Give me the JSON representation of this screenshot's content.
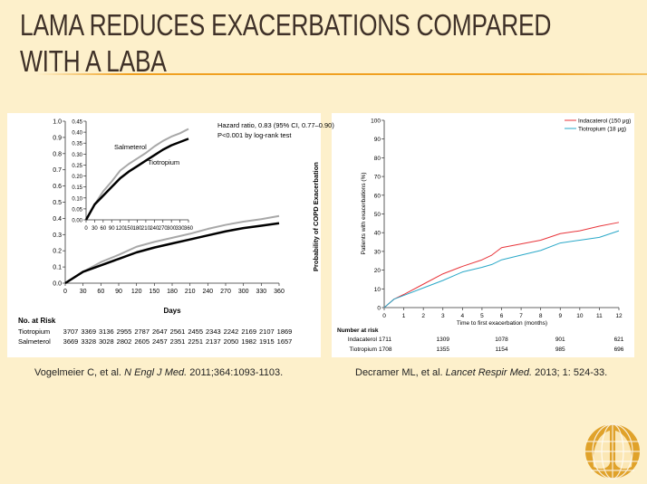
{
  "slide": {
    "title_line1": "LAMA REDUCES EXACERBATIONS COMPARED",
    "title_line2": "WITH A LABA"
  },
  "citations": [
    {
      "pre": "Vogelmeier C, et al. ",
      "journal": "N Engl J Med.",
      "post": " 2011;364:1093-1103."
    },
    {
      "pre": "Decramer ML, et al. ",
      "journal": "Lancet Respir Med.",
      "post": " 2013; 1: 524-33."
    }
  ],
  "colors": {
    "background": "#fdf0cb",
    "accent": "#f0a020",
    "title": "#3f3128",
    "tiotropium_left": "#000000",
    "salmeterol": "#a8a8a8",
    "indacaterol": "#e8343a",
    "tiotropium_right": "#2aa8c8"
  },
  "logo": {
    "icon": "globe-lungs-logo-icon"
  },
  "chart_data": [
    {
      "type": "line",
      "xlabel": "Days",
      "ylabel": "Probability of COPD Exacerbation",
      "xlim": [
        0,
        360
      ],
      "ylim": [
        0,
        1.0
      ],
      "xticks": [
        0,
        30,
        60,
        90,
        120,
        150,
        180,
        210,
        240,
        270,
        300,
        330,
        360
      ],
      "yticks": [
        "0.0",
        "0.1",
        "0.2",
        "0.3",
        "0.4",
        "0.5",
        "0.6",
        "0.7",
        "0.8",
        "0.9",
        "1.0"
      ],
      "annotation": [
        "Hazard ratio, 0.83 (95% CI, 0.77–0.90)",
        "P<0.001 by log-rank test"
      ],
      "inset": {
        "xlim": [
          0,
          360
        ],
        "ylim": [
          0,
          0.45
        ],
        "xticks": [
          0,
          30,
          60,
          90,
          120,
          150,
          180,
          210,
          240,
          270,
          300,
          330,
          360
        ],
        "yticks": [
          "0.00",
          "0.05",
          "0.10",
          "0.15",
          "0.20",
          "0.25",
          "0.30",
          "0.35",
          "0.40",
          "0.45"
        ],
        "labels": [
          "Salmeterol",
          "Tiotropium"
        ]
      },
      "x": [
        0,
        30,
        60,
        90,
        120,
        150,
        180,
        210,
        240,
        270,
        300,
        330,
        360
      ],
      "series": [
        {
          "name": "Tiotropium",
          "color": "#000000",
          "values": [
            0,
            0.07,
            0.11,
            0.15,
            0.19,
            0.22,
            0.245,
            0.27,
            0.295,
            0.32,
            0.34,
            0.355,
            0.37
          ]
        },
        {
          "name": "Salmeterol",
          "color": "#a8a8a8",
          "values": [
            0,
            0.07,
            0.13,
            0.175,
            0.225,
            0.255,
            0.28,
            0.305,
            0.335,
            0.36,
            0.38,
            0.395,
            0.415
          ]
        }
      ],
      "risk_table": {
        "title": "No. at Risk",
        "rows": [
          {
            "label": "Tiotropium",
            "values": [
              3707,
              3369,
              3136,
              2955,
              2787,
              2647,
              2561,
              2455,
              2343,
              2242,
              2169,
              2107,
              1869
            ]
          },
          {
            "label": "Salmeterol",
            "values": [
              3669,
              3328,
              3028,
              2802,
              2605,
              2457,
              2351,
              2251,
              2137,
              2050,
              1982,
              1915,
              1657
            ]
          }
        ]
      }
    },
    {
      "type": "line",
      "xlabel": "Time to first exacerbation (months)",
      "ylabel": "Patients with exacerbations (%)",
      "xlim": [
        0,
        12
      ],
      "ylim": [
        0,
        100
      ],
      "xticks": [
        0,
        1,
        2,
        3,
        4,
        5,
        6,
        7,
        8,
        9,
        10,
        11,
        12
      ],
      "yticks": [
        0,
        10,
        20,
        30,
        40,
        50,
        60,
        70,
        80,
        90,
        100
      ],
      "legend": "top-right",
      "x": [
        0,
        0.5,
        1,
        2,
        3,
        4,
        5,
        5.5,
        6,
        7,
        8,
        9,
        10,
        11,
        12
      ],
      "series": [
        {
          "name": "Indacaterol (150 μg)",
          "color": "#e8343a",
          "values": [
            0,
            4.5,
            7,
            12.5,
            18,
            22,
            25.5,
            28,
            32,
            34,
            36,
            39.5,
            41,
            43.5,
            45.5
          ]
        },
        {
          "name": "Tiotropium (18 μg)",
          "color": "#2aa8c8",
          "values": [
            0,
            4.5,
            6.5,
            10.5,
            14.5,
            19,
            21.5,
            23,
            25.5,
            28,
            30.5,
            34.5,
            36,
            37.5,
            41
          ]
        }
      ],
      "risk_table": {
        "title": "Number at risk",
        "x": [
          0,
          3,
          6,
          9,
          12
        ],
        "rows": [
          {
            "label": "Indacaterol",
            "values": [
              1711,
              1309,
              1078,
              901,
              621
            ]
          },
          {
            "label": "Tiotropium",
            "values": [
              1708,
              1355,
              1154,
              985,
              696
            ]
          }
        ]
      }
    }
  ]
}
